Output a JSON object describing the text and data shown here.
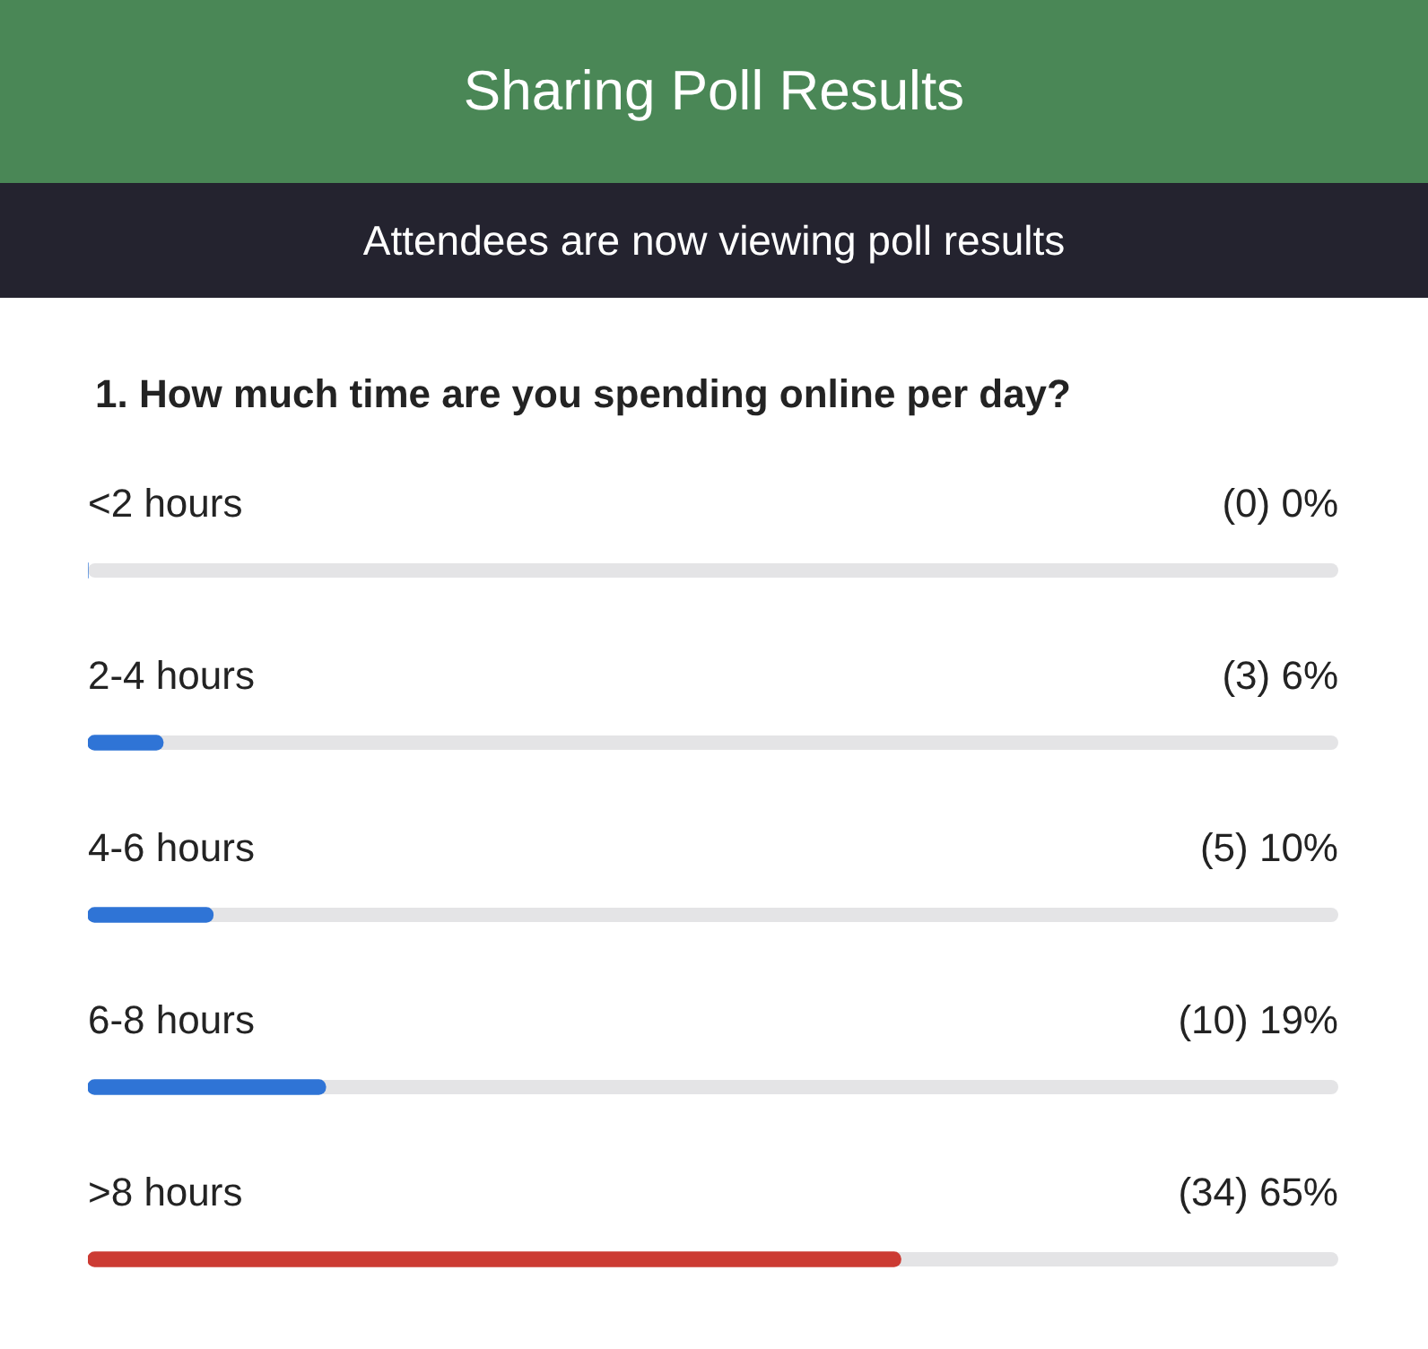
{
  "chart_data": {
    "type": "bar",
    "orientation": "horizontal",
    "title": "Sharing Poll Results",
    "subtitle": "Attendees are now viewing poll results",
    "annotations": [
      "1. How much time are you spending online per day?"
    ],
    "categories": [
      "<2 hours",
      "2-4 hours",
      "4-6 hours",
      "6-8 hours",
      ">8 hours"
    ],
    "values": [
      0,
      6,
      10,
      19,
      65
    ],
    "colors": [
      "#2f74d6",
      "#2f74d6",
      "#2f74d6",
      "#2f74d6",
      "#cc3b33"
    ],
    "value_labels": [
      "(0) 0%",
      "(3) 6%",
      "(5) 10%",
      "(10) 19%",
      "(34) 65%"
    ],
    "xlim": [
      0,
      100
    ]
  }
}
